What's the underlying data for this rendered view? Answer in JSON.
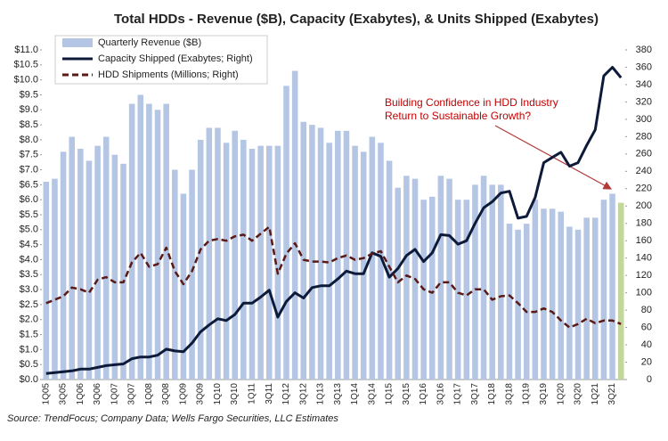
{
  "chart_data": {
    "type": "bar_line",
    "title": "Total HDDs -  Revenue ($B), Capacity (Exabytes), & Units Shipped (Exabytes)",
    "source": "Source:  TrendFocus; Company Data; Wells Fargo Securities, LLC Estimates",
    "annotation": [
      "Building Confidence in HDD Industry",
      "Return to Sustainable Growth?"
    ],
    "categories": [
      "1Q05",
      null,
      "3Q05",
      null,
      "1Q06",
      null,
      "3Q06",
      null,
      "1Q07",
      null,
      "3Q07",
      null,
      "1Q08",
      null,
      "3Q08",
      null,
      "1Q09",
      null,
      "3Q09",
      null,
      "1Q10",
      null,
      "3Q10",
      null,
      "1Q11",
      null,
      "3Q11",
      null,
      "1Q12",
      null,
      "3Q12",
      null,
      "1Q13",
      null,
      "3Q13",
      null,
      "1Q14",
      null,
      "3Q14",
      null,
      "1Q15",
      null,
      "3Q15",
      null,
      "1Q16",
      null,
      "3Q16",
      null,
      "1Q17",
      null,
      "3Q17",
      null,
      "1Q18",
      null,
      "3Q18",
      null,
      "1Q19",
      null,
      "3Q19",
      null,
      "1Q20",
      null,
      "3Q20",
      null,
      "1Q21",
      null,
      "3Q21",
      null
    ],
    "series": [
      {
        "name": "Quarterly Revenue ($B)",
        "kind": "bar",
        "color": "#b4c6e4",
        "last_color": "#c4d79b",
        "axis": "y",
        "values": [
          6.6,
          6.7,
          7.6,
          8.1,
          7.7,
          7.3,
          7.8,
          8.1,
          7.5,
          7.2,
          9.2,
          9.5,
          9.2,
          9.0,
          9.2,
          7.0,
          6.2,
          7.0,
          8.0,
          8.4,
          8.4,
          7.9,
          8.3,
          8.0,
          7.7,
          7.8,
          7.8,
          7.8,
          9.8,
          10.3,
          8.6,
          8.5,
          8.4,
          7.9,
          8.3,
          8.3,
          7.8,
          7.6,
          8.1,
          7.9,
          7.3,
          6.4,
          6.8,
          6.7,
          6.0,
          6.1,
          6.8,
          6.7,
          6.0,
          6.0,
          6.5,
          6.8,
          6.5,
          6.5,
          5.2,
          5.0,
          5.2,
          6.0,
          5.7,
          5.7,
          5.6,
          5.1,
          5.0,
          5.4,
          5.4,
          6.0,
          6.2,
          5.9
        ]
      },
      {
        "name": "Capacity Shipped (Exabytes; Right)",
        "kind": "line",
        "color": "#0d1a3a",
        "axis": "y2",
        "values": [
          7,
          8,
          9,
          10,
          12,
          12,
          14,
          16,
          17,
          18,
          24,
          26,
          26,
          28,
          35,
          33,
          32,
          42,
          55,
          63,
          70,
          68,
          75,
          88,
          88,
          95,
          103,
          72,
          90,
          100,
          94,
          106,
          108,
          108,
          116,
          125,
          122,
          122,
          146,
          142,
          118,
          128,
          143,
          150,
          136,
          146,
          167,
          166,
          156,
          160,
          180,
          198,
          205,
          215,
          217,
          186,
          188,
          210,
          250,
          256,
          262,
          246,
          250,
          270,
          288,
          350,
          360,
          348
        ]
      },
      {
        "name": "HDD Shipments (Millions; Right)",
        "kind": "dashed",
        "color": "#5a1a16",
        "axis": "y2",
        "values": [
          88,
          92,
          96,
          106,
          104,
          100,
          115,
          118,
          112,
          112,
          135,
          146,
          130,
          133,
          152,
          125,
          110,
          125,
          150,
          160,
          162,
          160,
          165,
          167,
          160,
          168,
          176,
          122,
          145,
          157,
          138,
          136,
          136,
          135,
          140,
          143,
          138,
          140,
          145,
          148,
          130,
          112,
          120,
          116,
          104,
          100,
          112,
          112,
          100,
          97,
          104,
          104,
          92,
          96,
          97,
          88,
          78,
          78,
          82,
          78,
          68,
          60,
          64,
          70,
          65,
          68,
          68,
          64
        ]
      }
    ],
    "ylim": [
      0,
      11
    ],
    "yticks": [
      {
        "value": 0,
        "label": "$0.0"
      },
      {
        "value": 0.5,
        "label": "$0.5"
      },
      {
        "value": 1,
        "label": "$1.0"
      },
      {
        "value": 1.5,
        "label": "$1.5"
      },
      {
        "value": 2,
        "label": "$2.0"
      },
      {
        "value": 2.5,
        "label": "$2.5"
      },
      {
        "value": 3,
        "label": "$3.0"
      },
      {
        "value": 3.5,
        "label": "$3.5"
      },
      {
        "value": 4,
        "label": "$4.0"
      },
      {
        "value": 4.5,
        "label": "$4.5"
      },
      {
        "value": 5,
        "label": "$5.0"
      },
      {
        "value": 5.5,
        "label": "$5.5"
      },
      {
        "value": 6,
        "label": "$6.0"
      },
      {
        "value": 6.5,
        "label": "$6.5"
      },
      {
        "value": 7,
        "label": "$7.0"
      },
      {
        "value": 7.5,
        "label": "$7.5"
      },
      {
        "value": 8,
        "label": "$8.0"
      },
      {
        "value": 8.5,
        "label": "$8.5"
      },
      {
        "value": 9,
        "label": "$9.0"
      },
      {
        "value": 9.5,
        "label": "$9.5"
      },
      {
        "value": 10,
        "label": "$10.0"
      },
      {
        "value": 10.5,
        "label": "$10.5"
      },
      {
        "value": 11,
        "label": "$11.0"
      }
    ],
    "y2lim": [
      0,
      380
    ],
    "y2ticks": [
      0,
      20,
      40,
      60,
      80,
      100,
      120,
      140,
      160,
      180,
      200,
      220,
      240,
      260,
      280,
      300,
      320,
      340,
      360,
      380
    ]
  }
}
